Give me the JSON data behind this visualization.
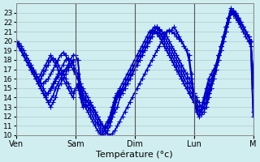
{
  "title": "",
  "xlabel": "Température (°c)",
  "ylabel": "",
  "background_color": "#d0eef0",
  "plot_background": "#d0eef0",
  "grid_color": "#aacccc",
  "line_color": "#0000cc",
  "marker": "+",
  "markersize": 5,
  "linewidth": 1.2,
  "ylim": [
    10,
    24
  ],
  "yticks": [
    10,
    11,
    12,
    13,
    14,
    15,
    16,
    17,
    18,
    19,
    20,
    21,
    22,
    23
  ],
  "day_labels": [
    "Ven",
    "Sam",
    "Dim",
    "Lun",
    "M"
  ],
  "day_positions": [
    0,
    24,
    48,
    72,
    96
  ],
  "num_steps": 97,
  "lines": [
    [
      20.0,
      19.8,
      19.5,
      19.0,
      18.5,
      18.0,
      17.5,
      17.0,
      16.5,
      16.0,
      15.5,
      15.0,
      14.5,
      14.5,
      14.8,
      15.2,
      15.8,
      16.2,
      16.5,
      16.8,
      17.0,
      17.2,
      17.5,
      17.8,
      16.5,
      16.0,
      15.5,
      15.0,
      14.5,
      14.0,
      13.5,
      13.0,
      12.5,
      12.0,
      11.5,
      11.0,
      10.5,
      10.2,
      10.0,
      10.2,
      10.5,
      11.0,
      11.5,
      12.0,
      12.5,
      13.0,
      13.5,
      14.0,
      14.5,
      15.0,
      15.5,
      16.0,
      16.5,
      17.0,
      17.5,
      18.0,
      18.5,
      19.0,
      19.5,
      20.0,
      20.5,
      21.0,
      21.0,
      21.2,
      21.5,
      21.0,
      20.5,
      20.0,
      19.5,
      19.0,
      18.5,
      16.5,
      14.5,
      12.5,
      12.0,
      12.2,
      12.5,
      13.0,
      14.0,
      15.0,
      16.0,
      17.0,
      18.0,
      19.0,
      20.0,
      21.0,
      22.0,
      23.0,
      23.2,
      23.0,
      22.5,
      22.0,
      21.5,
      21.0,
      20.5,
      20.0,
      16.0
    ],
    [
      20.0,
      19.5,
      19.0,
      18.5,
      18.0,
      17.5,
      17.0,
      16.8,
      16.5,
      16.0,
      15.5,
      15.5,
      15.8,
      16.0,
      16.5,
      17.0,
      17.5,
      18.0,
      18.5,
      18.8,
      18.5,
      18.0,
      17.5,
      17.0,
      16.5,
      16.0,
      15.0,
      14.0,
      13.5,
      13.0,
      12.5,
      12.0,
      11.5,
      11.2,
      10.5,
      10.2,
      10.5,
      11.0,
      11.5,
      12.0,
      12.5,
      13.0,
      14.0,
      15.0,
      15.5,
      16.0,
      16.5,
      17.0,
      17.5,
      18.0,
      18.5,
      19.0,
      19.5,
      20.0,
      20.5,
      21.0,
      21.5,
      21.5,
      21.0,
      20.5,
      20.5,
      21.0,
      21.2,
      21.0,
      20.8,
      20.5,
      20.2,
      20.0,
      19.5,
      19.0,
      18.0,
      16.0,
      14.0,
      12.5,
      12.2,
      12.5,
      13.0,
      13.5,
      14.5,
      15.5,
      16.5,
      17.5,
      18.5,
      19.5,
      20.5,
      21.5,
      22.5,
      23.5,
      23.2,
      22.8,
      22.5,
      22.0,
      21.5,
      21.0,
      20.5,
      20.0,
      15.5
    ],
    [
      20.0,
      19.5,
      19.0,
      18.5,
      18.0,
      17.5,
      17.2,
      17.0,
      16.5,
      16.0,
      16.5,
      17.0,
      17.5,
      18.0,
      18.5,
      18.0,
      17.5,
      17.0,
      16.5,
      16.0,
      15.5,
      15.0,
      14.5,
      14.0,
      15.0,
      15.5,
      14.5,
      13.5,
      13.0,
      12.5,
      12.0,
      11.5,
      11.0,
      10.5,
      10.2,
      10.0,
      10.2,
      10.5,
      11.0,
      12.0,
      13.0,
      14.0,
      15.0,
      15.5,
      16.0,
      16.5,
      17.0,
      17.5,
      18.0,
      18.5,
      19.0,
      19.5,
      20.0,
      20.5,
      21.0,
      21.2,
      21.0,
      20.8,
      20.5,
      20.0,
      19.5,
      19.0,
      18.5,
      18.0,
      17.5,
      17.0,
      16.5,
      16.0,
      15.5,
      15.0,
      14.5,
      14.0,
      13.5,
      13.0,
      12.5,
      12.5,
      13.0,
      13.5,
      14.5,
      15.5,
      16.5,
      17.5,
      18.5,
      19.5,
      20.5,
      21.5,
      22.5,
      23.0,
      23.2,
      23.0,
      22.5,
      22.0,
      21.5,
      21.0,
      20.5,
      20.0,
      16.5
    ],
    [
      20.0,
      19.5,
      19.0,
      18.5,
      18.0,
      17.5,
      17.0,
      16.5,
      16.0,
      15.5,
      16.0,
      16.5,
      17.0,
      17.5,
      18.0,
      18.2,
      18.0,
      17.5,
      17.0,
      16.5,
      16.0,
      15.5,
      15.0,
      14.5,
      14.8,
      15.2,
      14.0,
      13.0,
      13.0,
      13.2,
      13.5,
      13.0,
      12.5,
      12.0,
      11.5,
      11.0,
      10.8,
      11.0,
      11.5,
      12.5,
      13.5,
      14.5,
      14.0,
      14.5,
      15.0,
      15.5,
      16.0,
      16.5,
      17.0,
      17.5,
      18.0,
      18.5,
      19.0,
      19.5,
      20.0,
      20.5,
      21.0,
      21.5,
      21.2,
      21.0,
      20.8,
      20.5,
      20.0,
      19.5,
      19.0,
      18.5,
      18.0,
      17.5,
      17.0,
      16.5,
      16.0,
      15.5,
      14.5,
      13.5,
      12.5,
      12.5,
      13.0,
      13.5,
      14.5,
      15.0,
      16.0,
      17.0,
      18.0,
      19.0,
      20.0,
      21.0,
      22.0,
      23.0,
      23.0,
      22.8,
      22.5,
      22.0,
      21.5,
      21.0,
      20.5,
      20.0,
      12.5
    ],
    [
      20.0,
      19.5,
      19.0,
      18.5,
      18.0,
      17.5,
      17.0,
      16.5,
      16.0,
      15.5,
      15.0,
      14.5,
      14.0,
      14.5,
      15.0,
      15.5,
      16.0,
      16.5,
      17.0,
      17.5,
      18.0,
      18.2,
      18.0,
      17.5,
      17.0,
      16.5,
      14.8,
      13.5,
      13.2,
      13.0,
      12.8,
      12.5,
      12.0,
      11.5,
      11.0,
      10.5,
      10.5,
      11.0,
      12.0,
      13.0,
      13.5,
      14.0,
      14.5,
      15.0,
      15.5,
      16.0,
      16.5,
      17.0,
      17.5,
      18.0,
      18.5,
      19.0,
      19.5,
      20.0,
      20.5,
      21.0,
      21.0,
      20.8,
      20.5,
      20.0,
      19.5,
      19.0,
      18.5,
      18.0,
      17.5,
      17.0,
      16.5,
      16.0,
      15.5,
      15.0,
      14.5,
      14.0,
      13.5,
      13.0,
      12.5,
      12.8,
      13.5,
      14.0,
      15.0,
      15.5,
      16.5,
      17.5,
      18.5,
      19.5,
      20.5,
      21.5,
      22.5,
      23.0,
      22.8,
      22.5,
      22.2,
      21.8,
      21.5,
      21.0,
      20.5,
      20.0,
      15.0
    ],
    [
      20.0,
      19.5,
      19.0,
      18.5,
      18.0,
      17.5,
      17.0,
      16.5,
      16.0,
      15.5,
      15.0,
      14.5,
      14.0,
      13.5,
      13.8,
      14.2,
      15.0,
      15.5,
      16.0,
      16.5,
      17.0,
      17.5,
      18.0,
      18.5,
      18.5,
      18.0,
      15.0,
      14.0,
      13.8,
      13.5,
      13.2,
      13.0,
      12.5,
      12.0,
      11.5,
      11.0,
      10.8,
      11.0,
      11.5,
      12.5,
      13.5,
      14.5,
      14.5,
      14.8,
      15.0,
      15.5,
      16.0,
      16.5,
      17.0,
      17.5,
      18.0,
      18.5,
      19.0,
      19.5,
      20.0,
      20.5,
      21.0,
      21.5,
      21.3,
      21.0,
      20.5,
      20.0,
      19.5,
      19.0,
      18.5,
      18.0,
      17.5,
      17.0,
      16.5,
      16.0,
      15.5,
      15.0,
      14.5,
      14.0,
      13.5,
      13.0,
      13.5,
      14.5,
      15.5,
      16.0,
      16.5,
      17.5,
      18.5,
      19.5,
      20.5,
      21.5,
      22.5,
      23.2,
      23.0,
      22.8,
      22.5,
      22.0,
      21.5,
      21.0,
      20.5,
      20.0,
      16.5
    ],
    [
      20.0,
      19.5,
      19.0,
      18.5,
      18.0,
      17.5,
      17.0,
      16.5,
      16.0,
      15.5,
      15.0,
      14.5,
      14.0,
      13.5,
      13.0,
      13.5,
      14.0,
      15.0,
      15.5,
      16.0,
      16.5,
      17.0,
      17.5,
      18.0,
      18.0,
      18.0,
      15.5,
      14.5,
      14.0,
      13.5,
      13.2,
      13.0,
      12.5,
      12.0,
      11.5,
      11.0,
      11.0,
      11.5,
      12.0,
      13.0,
      14.0,
      14.5,
      14.8,
      15.0,
      15.5,
      16.0,
      16.5,
      17.0,
      17.5,
      18.0,
      18.5,
      19.0,
      19.5,
      20.0,
      20.5,
      21.0,
      21.0,
      21.0,
      20.8,
      20.5,
      20.0,
      19.5,
      19.0,
      18.5,
      18.0,
      17.5,
      17.0,
      16.5,
      16.0,
      15.5,
      15.0,
      14.5,
      14.0,
      13.5,
      13.0,
      13.0,
      14.0,
      15.0,
      16.0,
      16.5,
      17.0,
      17.5,
      18.5,
      19.5,
      20.5,
      21.5,
      22.5,
      23.0,
      23.0,
      22.5,
      22.0,
      21.5,
      21.0,
      20.5,
      20.0,
      19.5,
      12.0
    ]
  ]
}
